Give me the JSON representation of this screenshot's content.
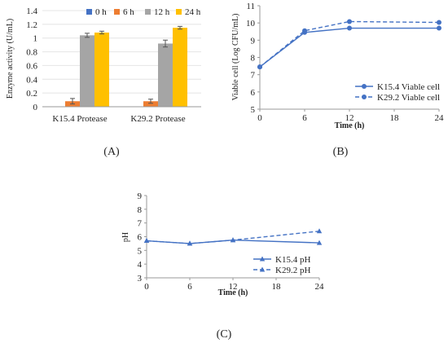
{
  "colors": {
    "blue": "#4472C4",
    "orange": "#ED7D31",
    "gray": "#A5A5A5",
    "gold": "#FFC000",
    "line": "#4472C4"
  },
  "panel_labels": {
    "a": "(A)",
    "b": "(B)",
    "c": "(C)"
  },
  "chart_data": [
    {
      "type": "bar",
      "panel": "A",
      "ylabel": "Enzyme activity (U/mL)",
      "categories": [
        "K15.4 Protease",
        "K29.2 Protease"
      ],
      "ylim": [
        0,
        1.4
      ],
      "yticks": [
        "0",
        "0.2",
        "0.4",
        "0.6",
        "0.8",
        "1",
        "1.2",
        "1.4"
      ],
      "legend_position": "top",
      "series": [
        {
          "name": "0 h",
          "color": "#4472C4",
          "values": [
            0,
            0
          ],
          "errors": [
            0,
            0
          ]
        },
        {
          "name": "6 h",
          "color": "#ED7D31",
          "values": [
            0.08,
            0.08
          ],
          "errors": [
            0.04,
            0.03
          ]
        },
        {
          "name": "12 h",
          "color": "#A5A5A5",
          "values": [
            1.04,
            0.92
          ],
          "errors": [
            0.03,
            0.05
          ]
        },
        {
          "name": "24 h",
          "color": "#FFC000",
          "values": [
            1.08,
            1.15
          ],
          "errors": [
            0.02,
            0.02
          ]
        }
      ]
    },
    {
      "type": "line",
      "panel": "B",
      "ylabel": "Viable cell (Log CFU/mL)",
      "xlabel": "Time (h)",
      "x": [
        0,
        6,
        12,
        24
      ],
      "xticks": [
        "0",
        "6",
        "12",
        "18",
        "24"
      ],
      "xlim": [
        0,
        24
      ],
      "ylim": [
        5,
        11
      ],
      "yticks": [
        "5",
        "6",
        "7",
        "8",
        "9",
        "10",
        "11"
      ],
      "legend_position": "bottom-right",
      "series": [
        {
          "name": "K15.4 Viable cell",
          "marker": "circle",
          "dash": "solid",
          "values": [
            7.45,
            9.45,
            9.7,
            9.7
          ]
        },
        {
          "name": "K29.2 Viable cell",
          "marker": "circle",
          "dash": "dashed",
          "values": [
            7.45,
            9.55,
            10.08,
            10.03
          ]
        }
      ]
    },
    {
      "type": "line",
      "panel": "C",
      "ylabel": "pH",
      "xlabel": "Time (h)",
      "x": [
        0,
        6,
        12,
        24
      ],
      "xticks": [
        "0",
        "6",
        "12",
        "18",
        "24"
      ],
      "xlim": [
        0,
        24
      ],
      "ylim": [
        3,
        9
      ],
      "yticks": [
        "3",
        "4",
        "5",
        "6",
        "7",
        "8",
        "9"
      ],
      "legend_position": "bottom-right",
      "series": [
        {
          "name": "K15.4 pH",
          "marker": "triangle",
          "dash": "solid",
          "values": [
            5.7,
            5.5,
            5.75,
            5.55
          ]
        },
        {
          "name": "K29.2 pH",
          "marker": "triangle",
          "dash": "dashed",
          "values": [
            5.7,
            5.5,
            5.75,
            6.4
          ]
        }
      ]
    }
  ]
}
